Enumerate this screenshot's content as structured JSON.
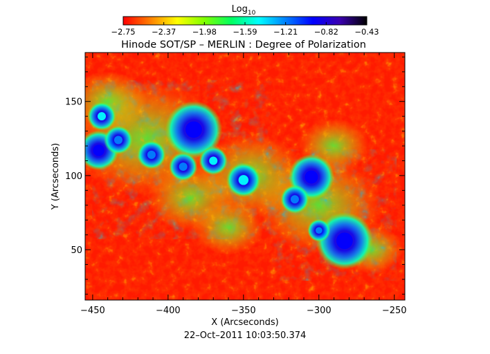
{
  "chart_data": {
    "type": "heatmap",
    "title": "Hinode SOT/SP – MERLIN : Degree of Polarization",
    "xlabel": "X (Arcseconds)",
    "ylabel": "Y (Arcseconds)",
    "timestamp": "22–Oct–2011 10:03:50.374",
    "xlim": [
      -455,
      -243
    ],
    "ylim": [
      16,
      183
    ],
    "x_ticks": [
      -450,
      -400,
      -350,
      -300,
      -250
    ],
    "y_ticks": [
      50,
      100,
      150
    ],
    "colorbar": {
      "title": "Log",
      "title_subscript": "10",
      "range": [
        -2.75,
        -0.43
      ],
      "ticks": [
        "−2.75",
        "−2.37",
        "−1.98",
        "−1.59",
        "−1.21",
        "−0.82",
        "−0.43"
      ],
      "colors": [
        "#ff0000",
        "#ff7f00",
        "#ffff00",
        "#80ff00",
        "#00ff60",
        "#00ffff",
        "#0080ff",
        "#0000ff",
        "#3a00b0",
        "#000000"
      ]
    },
    "features": [
      {
        "x": -383,
        "y": 131,
        "radius": 10,
        "value": -0.82
      },
      {
        "x": -283,
        "y": 56,
        "radius": 10,
        "value": -0.82
      },
      {
        "x": -305,
        "y": 99,
        "radius": 8,
        "value": -0.9
      },
      {
        "x": -446,
        "y": 117,
        "radius": 7,
        "value": -1.05
      },
      {
        "x": -433,
        "y": 124,
        "radius": 5,
        "value": -1.1
      },
      {
        "x": -411,
        "y": 114,
        "radius": 5,
        "value": -1.15
      },
      {
        "x": -316,
        "y": 84,
        "radius": 5,
        "value": -1.15
      },
      {
        "x": -390,
        "y": 106,
        "radius": 5,
        "value": -1.25
      },
      {
        "x": -300,
        "y": 63,
        "radius": 4,
        "value": -1.2
      },
      {
        "x": -350,
        "y": 97,
        "radius": 6,
        "value": -1.5
      },
      {
        "x": -444,
        "y": 140,
        "radius": 5,
        "value": -1.4
      },
      {
        "x": -370,
        "y": 110,
        "radius": 5,
        "value": -1.4
      }
    ]
  }
}
